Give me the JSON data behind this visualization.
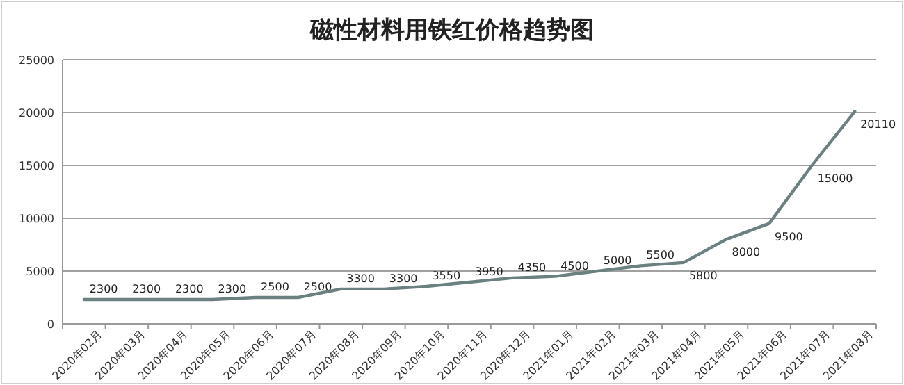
{
  "chart_data": {
    "type": "line",
    "title": "磁性材料用铁红价格趋势图",
    "categories": [
      "2020年02月",
      "2020年03月",
      "2020年04月",
      "2020年05月",
      "2020年06月",
      "2020年07月",
      "2020年08月",
      "2020年09月",
      "2020年10月",
      "2020年11月",
      "2020年12月",
      "2021年01月",
      "2021年02月",
      "2021年03月",
      "2021年04月",
      "2021年05月",
      "2021年06月",
      "2021年07月",
      "2021年08月"
    ],
    "series": [
      {
        "color": "#6b8080",
        "values": [
          2300,
          2300,
          2300,
          2300,
          2500,
          2500,
          3300,
          3300,
          3550,
          3950,
          4350,
          4500,
          5000,
          5500,
          5800,
          8000,
          9500,
          15000,
          20110
        ]
      }
    ],
    "ylim": [
      0,
      25000
    ],
    "yticks": [
      0,
      5000,
      10000,
      15000,
      20000,
      25000
    ],
    "grid": "y",
    "data_labels": true,
    "marker": "none",
    "line_style": "solid"
  }
}
